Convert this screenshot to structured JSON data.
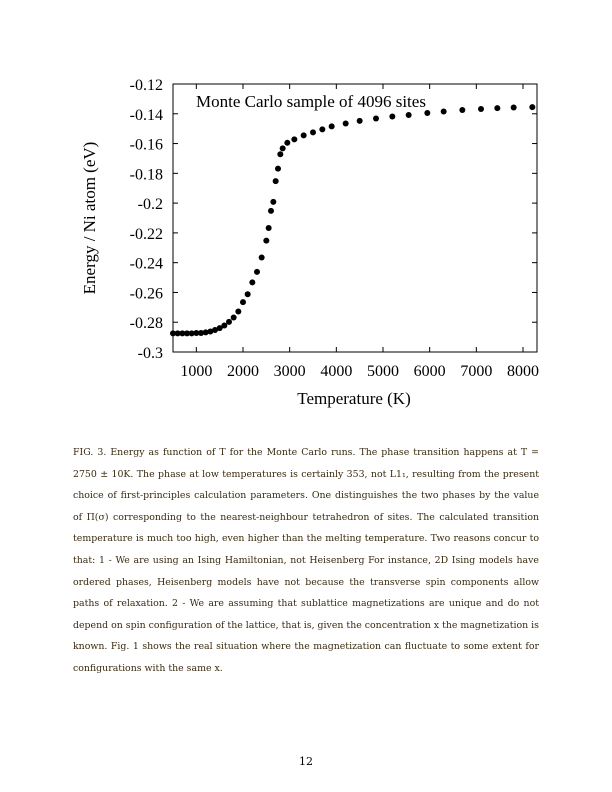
{
  "figure": {
    "chart_data": {
      "type": "scatter",
      "title": "Monte Carlo sample of 4096 sites",
      "xlabel": "Temperature (K)",
      "ylabel": "Energy / Ni atom (eV)",
      "xlim": [
        500,
        8300
      ],
      "ylim": [
        -0.3,
        -0.12
      ],
      "xticks": [
        1000,
        2000,
        3000,
        4000,
        5000,
        6000,
        7000,
        8000
      ],
      "xtick_labels": [
        "1000",
        "2000",
        "3000",
        "4000",
        "5000",
        "6000",
        "7000",
        "8000"
      ],
      "yticks": [
        -0.12,
        -0.14,
        -0.16,
        -0.18,
        -0.2,
        -0.22,
        -0.24,
        -0.26,
        -0.28,
        -0.3
      ],
      "ytick_labels": [
        "-0.12",
        "-0.14",
        "-0.16",
        "-0.18",
        "-0.2",
        "-0.22",
        "-0.24",
        "-0.26",
        "-0.28",
        "-0.3"
      ],
      "grid": false,
      "marker_color": "#000000",
      "x": [
        500,
        600,
        700,
        800,
        900,
        1000,
        1100,
        1200,
        1300,
        1400,
        1500,
        1600,
        1700,
        1800,
        1900,
        2000,
        2100,
        2200,
        2300,
        2400,
        2500,
        2550,
        2600,
        2650,
        2700,
        2750,
        2800,
        2850,
        2950,
        3100,
        3300,
        3500,
        3700,
        3900,
        4200,
        4500,
        4850,
        5200,
        5550,
        5950,
        6300,
        6700,
        7100,
        7450,
        7800,
        8200
      ],
      "y": [
        -0.2875,
        -0.2875,
        -0.2875,
        -0.2875,
        -0.2875,
        -0.2872,
        -0.2872,
        -0.2868,
        -0.2862,
        -0.2852,
        -0.284,
        -0.2822,
        -0.2798,
        -0.2768,
        -0.2728,
        -0.2665,
        -0.2612,
        -0.2532,
        -0.2462,
        -0.2365,
        -0.2252,
        -0.2167,
        -0.2052,
        -0.1992,
        -0.1852,
        -0.1768,
        -0.1672,
        -0.1632,
        -0.1595,
        -0.1572,
        -0.1545,
        -0.1525,
        -0.1505,
        -0.1485,
        -0.1465,
        -0.1448,
        -0.1432,
        -0.1418,
        -0.1408,
        -0.1395,
        -0.1385,
        -0.1375,
        -0.1368,
        -0.1362,
        -0.1358,
        -0.1355
      ]
    }
  },
  "caption": {
    "text": "FIG. 3.  Energy as function of T for the Monte Carlo runs.  The phase transition happens at T = 2750 ± 10K.  The phase at low temperatures is certainly 353, not L1₁, resulting from the present choice of first-principles calculation parameters.  One distinguishes the two phases by the value of Π(σ) corresponding to the nearest-neighbour tetrahedron of sites.  The calculated transition temperature is much too high, even higher than the melting temperature.  Two reasons concur to that:  1 - We are using an Ising Hamiltonian, not Heisenberg For instance, 2D Ising models have ordered phases, Heisenberg models have not because the transverse spin components allow paths of relaxation.  2 - We are assuming that sublattice magnetizations are unique and do not depend on spin configuration of the lattice, that is, given the concentration x the magnetization is known.  Fig. 1 shows the real situation where the magnetization can fluctuate to some extent for configurations with the same x."
  },
  "page_number": "12"
}
